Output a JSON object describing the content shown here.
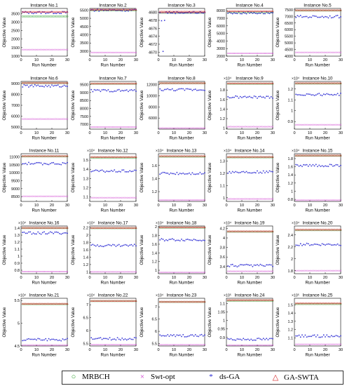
{
  "chart_data": {
    "type": "scatter",
    "x_range": [
      0,
      30
    ],
    "x_ticks": [
      0,
      10,
      20,
      30
    ],
    "xlabel": "Run Number",
    "ylabel": "Objective Value",
    "legend": {
      "placement": "bottom",
      "items": [
        {
          "name": "MRBCH",
          "marker": "circle",
          "color": "#2ca02c"
        },
        {
          "name": "Swt-opt",
          "marker": "x",
          "color": "#cc33cc"
        },
        {
          "name": "ds-GA",
          "marker": "asterisk",
          "color": "#1f1fd1"
        },
        {
          "name": "GA-SWTA",
          "marker": "triangle",
          "color": "#d62728"
        }
      ]
    },
    "panels": [
      {
        "title": "Instance No.1",
        "ylim": [
          1000,
          3800
        ],
        "yticks": [
          "1000",
          "1500",
          "2000",
          "2500",
          "3000",
          "3500"
        ],
        "exp": "",
        "levels": {
          "MRBCH": 3330,
          "Swt-opt": 1380,
          "ds-GA": 3560,
          "GA-SWTA": 3600
        }
      },
      {
        "title": "Instance No.2",
        "ylim": [
          2700,
          5600
        ],
        "yticks": [
          "3000",
          "3500",
          "4000",
          "4500",
          "5000",
          "5500"
        ],
        "exp": "",
        "levels": {
          "MRBCH": 5480,
          "Swt-opt": 2920,
          "ds-GA": 5500,
          "GA-SWTA": 5530
        }
      },
      {
        "title": "Instance No.3",
        "ylim": [
          4669,
          4681
        ],
        "yticks": [
          "4670",
          "4672",
          "4674",
          "4676",
          "4678",
          "4680"
        ],
        "exp": "",
        "levels": {
          "MRBCH": 4679.9,
          "Swt-opt": 4679.9,
          "ds-GA": 4680.0,
          "GA-SWTA": 4680.2
        },
        "outliers": [
          [
            2,
            4677.9
          ],
          [
            4,
            4678.0
          ],
          [
            3,
            4670.2
          ]
        ]
      },
      {
        "title": "Instance No.4",
        "ylim": [
          2000,
          8300
        ],
        "yticks": [
          "2000",
          "3000",
          "4000",
          "5000",
          "6000",
          "7000",
          "8000"
        ],
        "exp": "",
        "levels": {
          "MRBCH": 7780,
          "Swt-opt": 2370,
          "ds-GA": 7720,
          "GA-SWTA": 7940
        }
      },
      {
        "title": "Instance No.5",
        "ylim": [
          4000,
          7600
        ],
        "yticks": [
          "4000",
          "4500",
          "5000",
          "5500",
          "6000",
          "6500",
          "7000",
          "7500"
        ],
        "exp": "",
        "levels": {
          "MRBCH": 7440,
          "Swt-opt": 4280,
          "ds-GA": 6980,
          "GA-SWTA": 7470
        }
      },
      {
        "title": "Instance No.6",
        "ylim": [
          4800,
          9200
        ],
        "yticks": [
          "5000",
          "6000",
          "7000",
          "8000",
          "9000"
        ],
        "exp": "",
        "levels": {
          "MRBCH": 9040,
          "Swt-opt": 5730,
          "ds-GA": 8780,
          "GA-SWTA": 9070
        }
      },
      {
        "title": "Instance No.7",
        "ylim": [
          6700,
          9700
        ],
        "yticks": [
          "7000",
          "7500",
          "8000",
          "8500",
          "9000",
          "9500"
        ],
        "exp": "",
        "levels": {
          "MRBCH": 9550,
          "Swt-opt": 6830,
          "ds-GA": 9120,
          "GA-SWTA": 9570
        }
      },
      {
        "title": "Instance No.8",
        "ylim": [
          4000,
          12600
        ],
        "yticks": [
          "6000",
          "8000",
          "10000",
          "12000"
        ],
        "exp": "",
        "levels": {
          "MRBCH": 12260,
          "Swt-opt": 4180,
          "ds-GA": 11120,
          "GA-SWTA": 12320
        }
      },
      {
        "title": "Instance No.9",
        "ylim": [
          0.98,
          1.98
        ],
        "yticks": [
          "1",
          "1.2",
          "1.4",
          "1.6",
          "1.8"
        ],
        "exp": "×10⁴",
        "levels": {
          "MRBCH": 1.93,
          "Swt-opt": 1.03,
          "ds-GA": 1.65,
          "GA-SWTA": 1.94
        }
      },
      {
        "title": "Instance No.10",
        "ylim": [
          0.83,
          1.27
        ],
        "yticks": [
          "0.9",
          "1",
          "1.1",
          "1.2"
        ],
        "exp": "×10⁴",
        "levels": {
          "MRBCH": 1.25,
          "Swt-opt": 0.87,
          "ds-GA": 1.15,
          "GA-SWTA": 1.255
        }
      },
      {
        "title": "Instance No.11",
        "ylim": [
          8200,
          11200
        ],
        "yticks": [
          "8500",
          "9000",
          "9500",
          "10000",
          "10500",
          "11000"
        ],
        "exp": "",
        "levels": {
          "MRBCH": 11030,
          "Swt-opt": 8520,
          "ds-GA": 10580,
          "GA-SWTA": 11060
        }
      },
      {
        "title": "Instance No.12",
        "ylim": [
          1.05,
          1.57
        ],
        "yticks": [
          "1.1",
          "1.2",
          "1.3",
          "1.4",
          "1.5"
        ],
        "exp": "×10⁴",
        "levels": {
          "MRBCH": 1.525,
          "Swt-opt": 1.09,
          "ds-GA": 1.38,
          "GA-SWTA": 1.535
        }
      },
      {
        "title": "Instance No.13",
        "ylim": [
          1.05,
          1.78
        ],
        "yticks": [
          "1.2",
          "1.4",
          "1.6"
        ],
        "exp": "×10⁴",
        "levels": {
          "MRBCH": 1.735,
          "Swt-opt": 1.07,
          "ds-GA": 1.48,
          "GA-SWTA": 1.745
        }
      },
      {
        "title": "Instance No.14",
        "ylim": [
          0.97,
          1.36
        ],
        "yticks": [
          "1",
          "1.1",
          "1.2",
          "1.3"
        ],
        "exp": "×10⁴",
        "levels": {
          "MRBCH": 1.33,
          "Swt-opt": 0.99,
          "ds-GA": 1.21,
          "GA-SWTA": 1.335
        }
      },
      {
        "title": "Instance No.15",
        "ylim": [
          0.75,
          1.92
        ],
        "yticks": [
          "0.8",
          "1",
          "1.2",
          "1.4",
          "1.6",
          "1.8"
        ],
        "exp": "×10⁴",
        "levels": {
          "MRBCH": 1.87,
          "Swt-opt": 0.78,
          "ds-GA": 1.63,
          "GA-SWTA": 1.88
        }
      },
      {
        "title": "Instance No.16",
        "ylim": [
          0.75,
          1.43
        ],
        "yticks": [
          "0.8",
          "0.9",
          "1",
          "1.1",
          "1.2",
          "1.3",
          "1.4"
        ],
        "exp": "×10⁴",
        "levels": {
          "MRBCH": 1.4,
          "Swt-opt": 0.78,
          "ds-GA": 1.33,
          "GA-SWTA": 1.405
        }
      },
      {
        "title": "Instance No.17",
        "ylim": [
          0.95,
          2.25
        ],
        "yticks": [
          "1",
          "1.2",
          "1.4",
          "1.6",
          "1.8",
          "2",
          "2.2"
        ],
        "exp": "×10⁴",
        "levels": {
          "MRBCH": 2.19,
          "Swt-opt": 1.0,
          "ds-GA": 1.72,
          "GA-SWTA": 2.2
        }
      },
      {
        "title": "Instance No.18",
        "ylim": [
          0.92,
          2.02
        ],
        "yticks": [
          "1",
          "1.2",
          "1.4",
          "1.6",
          "1.8",
          "2"
        ],
        "exp": "×10⁴",
        "levels": {
          "MRBCH": 1.98,
          "Swt-opt": 0.95,
          "ds-GA": 1.7,
          "GA-SWTA": 1.99
        }
      },
      {
        "title": "Instance No.19",
        "ylim": [
          3.25,
          4.25
        ],
        "yticks": [
          "3.4",
          "3.6",
          "3.8",
          "4",
          "4.2"
        ],
        "exp": "×10⁴",
        "levels": {
          "MRBCH": 4.13,
          "Swt-opt": 3.3,
          "ds-GA": 3.42,
          "GA-SWTA": 4.14
        }
      },
      {
        "title": "Instance No.20",
        "ylim": [
          1.75,
          2.55
        ],
        "yticks": [
          "1.8",
          "2",
          "2.2",
          "2.4"
        ],
        "exp": "×10⁴",
        "levels": {
          "MRBCH": 2.48,
          "Swt-opt": 1.8,
          "ds-GA": 2.24,
          "GA-SWTA": 2.49
        }
      },
      {
        "title": "Instance No.21",
        "ylim": [
          4.5,
          5.55
        ],
        "yticks": [
          "4.5",
          "5",
          "5.5"
        ],
        "exp": "×10⁴",
        "levels": {
          "MRBCH": 5.42,
          "Swt-opt": 4.52,
          "ds-GA": 4.64,
          "GA-SWTA": 5.43
        }
      },
      {
        "title": "Instance No.22",
        "ylim": [
          5.4,
          7.25
        ],
        "yticks": [
          "5.5",
          "6",
          "6.5",
          "7"
        ],
        "exp": "×10⁴",
        "levels": {
          "MRBCH": 7.14,
          "Swt-opt": 5.45,
          "ds-GA": 5.68,
          "GA-SWTA": 7.15
        }
      },
      {
        "title": "Instance No.23",
        "ylim": [
          5.4,
          7.35
        ],
        "yticks": [
          "5.5",
          "6",
          "6.5",
          "7"
        ],
        "exp": "×10⁴",
        "levels": {
          "MRBCH": 7.2,
          "Swt-opt": 5.45,
          "ds-GA": 5.82,
          "GA-SWTA": 7.21
        }
      },
      {
        "title": "Instance No.24",
        "ylim": [
          0.85,
          1.13
        ],
        "yticks": [
          "0.9",
          "0.95",
          "1",
          "1.05",
          "1.1"
        ],
        "exp": "×10⁵",
        "levels": {
          "MRBCH": 1.115,
          "Swt-opt": 0.855,
          "ds-GA": 0.89,
          "GA-SWTA": 1.12
        }
      },
      {
        "title": "Instance No.25",
        "ylim": [
          1.0,
          1.58
        ],
        "yticks": [
          "1.1",
          "1.2",
          "1.3",
          "1.4",
          "1.5"
        ],
        "exp": "×10⁵",
        "levels": {
          "MRBCH": 1.51,
          "Swt-opt": 1.02,
          "ds-GA": 1.12,
          "GA-SWTA": 1.52
        }
      }
    ]
  }
}
